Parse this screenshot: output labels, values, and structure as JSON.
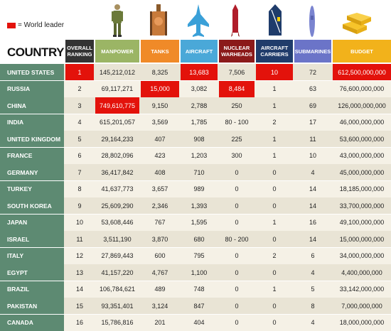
{
  "legend": {
    "label": "= World leader",
    "color": "#e3120b"
  },
  "title": "COUNTRY",
  "icons": [
    "soldier-icon",
    "tank-icon",
    "fighter-jet-icon",
    "nuclear-missile-icon",
    "aircraft-carrier-icon",
    "submarine-icon",
    "gold-bars-icon"
  ],
  "headers": [
    {
      "key": "rank",
      "label": "OVERALL RANKING",
      "color": "#333333"
    },
    {
      "key": "manpower",
      "label": "MANPOWER",
      "color": "#9bb565"
    },
    {
      "key": "tanks",
      "label": "TANKS",
      "color": "#f08a28"
    },
    {
      "key": "aircraft",
      "label": "AIRCRAFT",
      "color": "#4aa8d8"
    },
    {
      "key": "nuclear",
      "label": "NUCLEAR WARHEADS",
      "color": "#8b1a1a"
    },
    {
      "key": "carriers",
      "label": "AIRCRAFT CARRIERS",
      "color": "#203c6b"
    },
    {
      "key": "subs",
      "label": "SUBMARINES",
      "color": "#6b74c8"
    },
    {
      "key": "budget",
      "label": "BUDGET",
      "color": "#f2b21b"
    }
  ],
  "rows": [
    {
      "country": "UNITED STATES",
      "rank": "1",
      "manpower": "145,212,012",
      "tanks": "8,325",
      "aircraft": "13,683",
      "nuclear": "7,506",
      "carriers": "10",
      "subs": "72",
      "budget": "612,500,000,000",
      "leaders": [
        "rank",
        "aircraft",
        "carriers",
        "budget"
      ]
    },
    {
      "country": "RUSSIA",
      "rank": "2",
      "manpower": "69,117,271",
      "tanks": "15,000",
      "aircraft": "3,082",
      "nuclear": "8,484",
      "carriers": "1",
      "subs": "63",
      "budget": "76,600,000,000",
      "leaders": [
        "tanks",
        "nuclear"
      ]
    },
    {
      "country": "CHINA",
      "rank": "3",
      "manpower": "749,610,775",
      "tanks": "9,150",
      "aircraft": "2,788",
      "nuclear": "250",
      "carriers": "1",
      "subs": "69",
      "budget": "126,000,000,000",
      "leaders": [
        "manpower"
      ]
    },
    {
      "country": "INDIA",
      "rank": "4",
      "manpower": "615,201,057",
      "tanks": "3,569",
      "aircraft": "1,785",
      "nuclear": "80 - 100",
      "carriers": "2",
      "subs": "17",
      "budget": "46,000,000,000",
      "leaders": []
    },
    {
      "country": "UNITED KINGDOM",
      "rank": "5",
      "manpower": "29,164,233",
      "tanks": "407",
      "aircraft": "908",
      "nuclear": "225",
      "carriers": "1",
      "subs": "11",
      "budget": "53,600,000,000",
      "leaders": []
    },
    {
      "country": "FRANCE",
      "rank": "6",
      "manpower": "28,802,096",
      "tanks": "423",
      "aircraft": "1,203",
      "nuclear": "300",
      "carriers": "1",
      "subs": "10",
      "budget": "43,000,000,000",
      "leaders": []
    },
    {
      "country": "GERMANY",
      "rank": "7",
      "manpower": "36,417,842",
      "tanks": "408",
      "aircraft": "710",
      "nuclear": "0",
      "carriers": "0",
      "subs": "4",
      "budget": "45,000,000,000",
      "leaders": []
    },
    {
      "country": "TURKEY",
      "rank": "8",
      "manpower": "41,637,773",
      "tanks": "3,657",
      "aircraft": "989",
      "nuclear": "0",
      "carriers": "0",
      "subs": "14",
      "budget": "18,185,000,000",
      "leaders": []
    },
    {
      "country": "SOUTH KOREA",
      "rank": "9",
      "manpower": "25,609,290",
      "tanks": "2,346",
      "aircraft": "1,393",
      "nuclear": "0",
      "carriers": "0",
      "subs": "14",
      "budget": "33,700,000,000",
      "leaders": []
    },
    {
      "country": "JAPAN",
      "rank": "10",
      "manpower": "53,608,446",
      "tanks": "767",
      "aircraft": "1,595",
      "nuclear": "0",
      "carriers": "1",
      "subs": "16",
      "budget": "49,100,000,000",
      "leaders": []
    },
    {
      "country": "ISRAEL",
      "rank": "11",
      "manpower": "3,511,190",
      "tanks": "3,870",
      "aircraft": "680",
      "nuclear": "80 - 200",
      "carriers": "0",
      "subs": "14",
      "budget": "15,000,000,000",
      "leaders": []
    },
    {
      "country": "ITALY",
      "rank": "12",
      "manpower": "27,869,443",
      "tanks": "600",
      "aircraft": "795",
      "nuclear": "0",
      "carriers": "2",
      "subs": "6",
      "budget": "34,000,000,000",
      "leaders": []
    },
    {
      "country": "EGYPT",
      "rank": "13",
      "manpower": "41,157,220",
      "tanks": "4,767",
      "aircraft": "1,100",
      "nuclear": "0",
      "carriers": "0",
      "subs": "4",
      "budget": "4,400,000,000",
      "leaders": []
    },
    {
      "country": "BRAZIL",
      "rank": "14",
      "manpower": "106,784,621",
      "tanks": "489",
      "aircraft": "748",
      "nuclear": "0",
      "carriers": "1",
      "subs": "5",
      "budget": "33,142,000,000",
      "leaders": []
    },
    {
      "country": "PAKISTAN",
      "rank": "15",
      "manpower": "93,351,401",
      "tanks": "3,124",
      "aircraft": "847",
      "nuclear": "0",
      "carriers": "0",
      "subs": "8",
      "budget": "7,000,000,000",
      "leaders": []
    },
    {
      "country": "CANADA",
      "rank": "16",
      "manpower": "15,786,816",
      "tanks": "201",
      "aircraft": "404",
      "nuclear": "0",
      "carriers": "0",
      "subs": "4",
      "budget": "18,000,000,000",
      "leaders": []
    }
  ]
}
